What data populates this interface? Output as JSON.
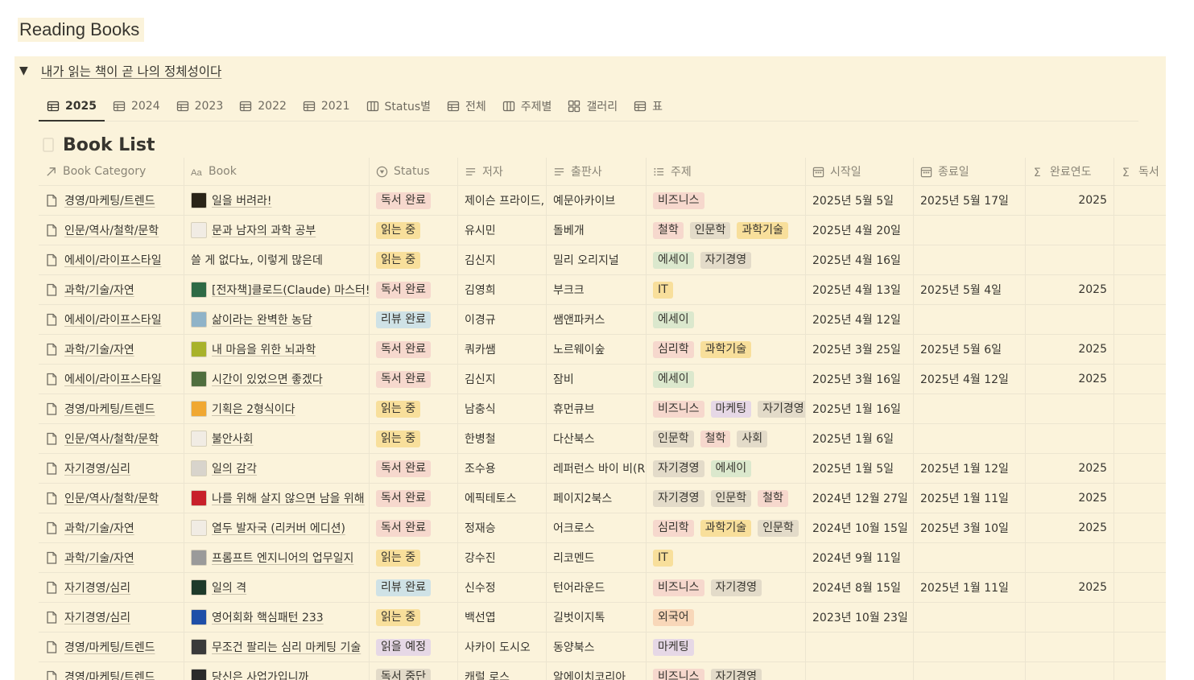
{
  "page": {
    "title": "Reading Books"
  },
  "callout": {
    "toggle_title": "내가 읽는 책이 곧 나의 정체성이다"
  },
  "tabs": [
    {
      "label": "2025",
      "icon": "table-icon"
    },
    {
      "label": "2024",
      "icon": "table-icon"
    },
    {
      "label": "2023",
      "icon": "table-icon"
    },
    {
      "label": "2022",
      "icon": "table-icon"
    },
    {
      "label": "2021",
      "icon": "table-icon"
    },
    {
      "label": "Status별",
      "icon": "board-icon"
    },
    {
      "label": "전체",
      "icon": "table-icon"
    },
    {
      "label": "주제별",
      "icon": "board-icon"
    },
    {
      "label": "갤러리",
      "icon": "gallery-icon"
    },
    {
      "label": "표",
      "icon": "table-icon"
    }
  ],
  "database": {
    "title": "Book List"
  },
  "columns": [
    {
      "label": "Book Category",
      "icon": "relation-arrow-icon"
    },
    {
      "label": "Book",
      "icon": "title-aa-icon"
    },
    {
      "label": "Status",
      "icon": "status-icon"
    },
    {
      "label": "저자",
      "icon": "text-lines-icon"
    },
    {
      "label": "출판사",
      "icon": "text-lines-icon"
    },
    {
      "label": "주제",
      "icon": "multiselect-list-icon"
    },
    {
      "label": "시작일",
      "icon": "calendar-icon"
    },
    {
      "label": "종료일",
      "icon": "calendar-icon"
    },
    {
      "label": "완료연도",
      "icon": "sigma-icon"
    },
    {
      "label": "독서",
      "icon": "sigma-icon"
    }
  ],
  "colors": {
    "callout_bg": "#fbf3db",
    "status": {
      "독서 완료": "#f6d8cd",
      "읽는 중": "#f8df9b",
      "리뷰 완료": "#cfe2e6",
      "읽을 예정": "#e6d8e6",
      "독서 중단": "#e3dbc9"
    },
    "topics": {
      "비즈니스": "#f6d8cd",
      "철학": "#f6d8cd",
      "인문학": "#e3dbc9",
      "과학기술": "#f8df9b",
      "에세이": "#dbe8cd",
      "자기경영": "#e3dbc9",
      "IT": "#f8df9b",
      "심리학": "#f6d8cd",
      "마케팅": "#e6d8e6",
      "사회": "#e3dbc9",
      "외국어": "#f8d7b9"
    }
  },
  "rows": [
    {
      "category": "경영/마케팅/트렌드",
      "book": "일을 버려라!",
      "thumb": "#2a2418",
      "status": "독서 완료",
      "author": "제이슨 프라이드,",
      "publisher": "예문아카이브",
      "topics": [
        "비즈니스"
      ],
      "start": "2025년 5월 5일",
      "end": "2025년 5월 17일",
      "year": "2025"
    },
    {
      "category": "인문/역사/철학/문학",
      "book": "문과 남자의 과학 공부",
      "thumb": "#f1ece4",
      "status": "읽는 중",
      "author": "유시민",
      "publisher": "돌베개",
      "topics": [
        "철학",
        "인문학",
        "과학기술"
      ],
      "start": "2025년 4월 20일",
      "end": "",
      "year": ""
    },
    {
      "category": "에세이/라이프스타일",
      "book": "쓸 게 없다뇨, 이렇게 많은데",
      "thumb": "",
      "status": "읽는 중",
      "author": "김신지",
      "publisher": "밀리 오리지널",
      "topics": [
        "에세이",
        "자기경영"
      ],
      "start": "2025년 4월 16일",
      "end": "",
      "year": ""
    },
    {
      "category": "과학/기술/자연",
      "book": "[전자책]클로드(Claude) 마스터!",
      "thumb": "#2e6a45",
      "status": "독서 완료",
      "author": "김영희",
      "publisher": "부크크",
      "topics": [
        "IT"
      ],
      "start": "2025년 4월 13일",
      "end": "2025년 5월 4일",
      "year": "2025"
    },
    {
      "category": "에세이/라이프스타일",
      "book": "삶이라는 완벽한 농담",
      "thumb": "#8fb3c8",
      "status": "리뷰 완료",
      "author": "이경규",
      "publisher": "쌤앤파커스",
      "topics": [
        "에세이"
      ],
      "start": "2025년 4월 12일",
      "end": "",
      "year": ""
    },
    {
      "category": "과학/기술/자연",
      "book": "내 마음을 위한 뇌과학",
      "thumb": "#a8b22a",
      "status": "독서 완료",
      "author": "쿼카쌤",
      "publisher": "노르웨이숲",
      "topics": [
        "심리학",
        "과학기술"
      ],
      "start": "2025년 3월 25일",
      "end": "2025년 5월 6일",
      "year": "2025"
    },
    {
      "category": "에세이/라이프스타일",
      "book": "시간이 있었으면 좋겠다",
      "thumb": "#4f6e3e",
      "status": "독서 완료",
      "author": "김신지",
      "publisher": "잠비",
      "topics": [
        "에세이"
      ],
      "start": "2025년 3월 16일",
      "end": "2025년 4월 12일",
      "year": "2025"
    },
    {
      "category": "경영/마케팅/트렌드",
      "book": "기획은 2형식이다",
      "thumb": "#f0a832",
      "status": "읽는 중",
      "author": "남충식",
      "publisher": "휴먼큐브",
      "topics": [
        "비즈니스",
        "마케팅",
        "자기경영"
      ],
      "start": "2025년 1월 16일",
      "end": "",
      "year": ""
    },
    {
      "category": "인문/역사/철학/문학",
      "book": "불안사회",
      "thumb": "#f1ece4",
      "status": "읽는 중",
      "author": "한병철",
      "publisher": "다산북스",
      "topics": [
        "인문학",
        "철학",
        "사회"
      ],
      "start": "2025년 1월 6일",
      "end": "",
      "year": ""
    },
    {
      "category": "자기경영/심리",
      "book": "일의 감각",
      "thumb": "#d8d4cc",
      "status": "독서 완료",
      "author": "조수용",
      "publisher": "레퍼런스 바이 비(R",
      "topics": [
        "자기경영",
        "에세이"
      ],
      "start": "2025년 1월 5일",
      "end": "2025년 1월 12일",
      "year": "2025"
    },
    {
      "category": "인문/역사/철학/문학",
      "book": "나를 위해 살지 않으면 남을 위해",
      "thumb": "#c8202a",
      "status": "독서 완료",
      "author": "에픽테토스",
      "publisher": "페이지2북스",
      "topics": [
        "자기경영",
        "인문학",
        "철학"
      ],
      "start": "2024년 12월 27일",
      "end": "2025년 1월 11일",
      "year": "2025"
    },
    {
      "category": "과학/기술/자연",
      "book": "열두 발자국 (리커버 에디션)",
      "thumb": "#f1ece4",
      "status": "독서 완료",
      "author": "정재승",
      "publisher": "어크로스",
      "topics": [
        "심리학",
        "과학기술",
        "인문학"
      ],
      "start": "2024년 10월 15일",
      "end": "2025년 3월 10일",
      "year": "2025"
    },
    {
      "category": "과학/기술/자연",
      "book": "프롬프트 엔지니어의 업무일지",
      "thumb": "#9a9a9a",
      "status": "읽는 중",
      "author": "강수진",
      "publisher": "리코멘드",
      "topics": [
        "IT"
      ],
      "start": "2024년 9월 11일",
      "end": "",
      "year": ""
    },
    {
      "category": "자기경영/심리",
      "book": "일의 격",
      "thumb": "#1e3a2a",
      "status": "리뷰 완료",
      "author": "신수정",
      "publisher": "턴어라운드",
      "topics": [
        "비즈니스",
        "자기경영"
      ],
      "start": "2024년 8월 15일",
      "end": "2025년 1월 11일",
      "year": "2025"
    },
    {
      "category": "자기경영/심리",
      "book": "영어회화 핵심패턴 233",
      "thumb": "#1f4fa8",
      "status": "읽는 중",
      "author": "백선엽",
      "publisher": "길벗이지톡",
      "topics": [
        "외국어"
      ],
      "start": "2023년 10월 23일",
      "end": "",
      "year": ""
    },
    {
      "category": "경영/마케팅/트렌드",
      "book": "무조건 팔리는 심리 마케팅 기술",
      "thumb": "#3a3a3a",
      "status": "읽을 예정",
      "author": "사카이 도시오",
      "publisher": "동양북스",
      "topics": [
        "마케팅"
      ],
      "start": "",
      "end": "",
      "year": ""
    },
    {
      "category": "경영/마케팅/트렌드",
      "book": "당신은 사업가입니까",
      "thumb": "#2a2a2a",
      "status": "독서 중단",
      "author": "캐럴 로스",
      "publisher": "알에이치코리아",
      "topics": [
        "비즈니스",
        "자기경영"
      ],
      "start": "",
      "end": "",
      "year": ""
    }
  ]
}
